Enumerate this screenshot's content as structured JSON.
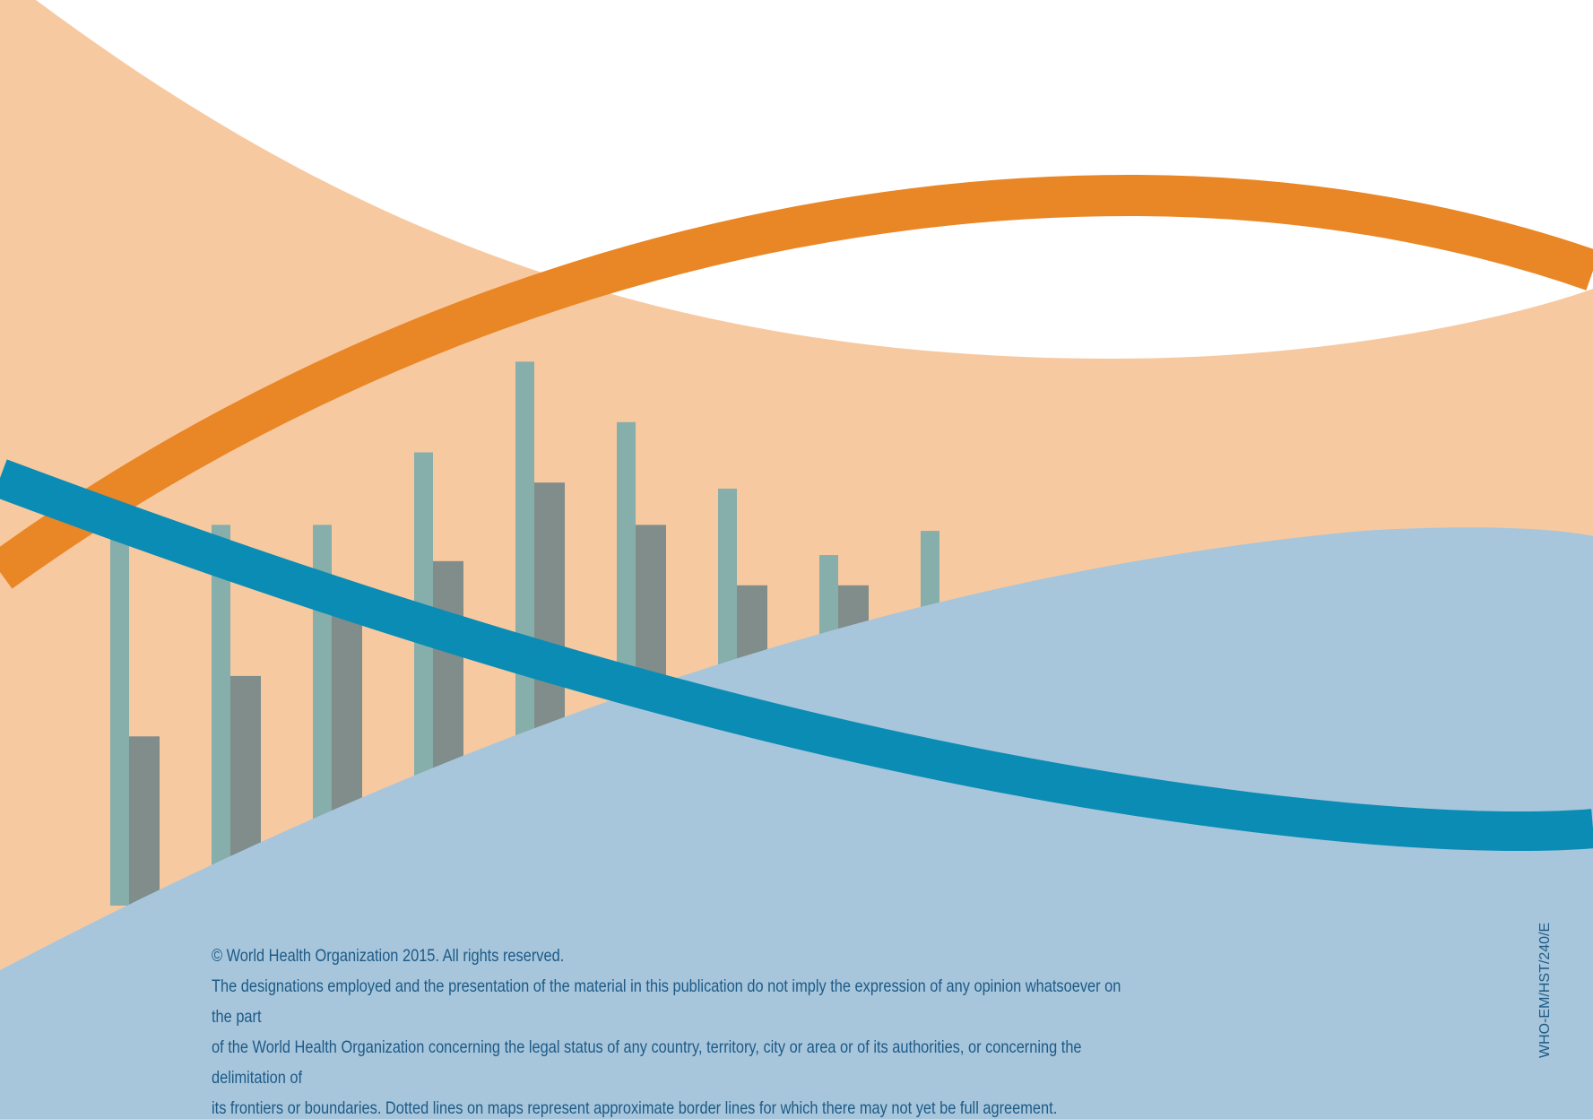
{
  "colors": {
    "background": "#ffffff",
    "peach": "#f7c9a0",
    "orange_band": "#e98626",
    "light_blue": "#a7c6dc",
    "teal_band": "#0b8cb4",
    "bar_light": "#86aeab",
    "bar_dark": "#808d8a",
    "text": "#1d5a86"
  },
  "chart_data": {
    "type": "bar",
    "categories": [
      "",
      "",
      "",
      "",
      "",
      "",
      "",
      "",
      ""
    ],
    "series": [
      {
        "values": [
          64,
          63,
          63,
          75,
          90,
          80,
          69,
          58,
          62
        ]
      },
      {
        "values": [
          28,
          38,
          52,
          57,
          70,
          63,
          53,
          53,
          0
        ]
      }
    ],
    "ylim": [
      0,
      100
    ],
    "title": "",
    "xlabel": "",
    "ylabel": ""
  },
  "footer": {
    "copyright": "© World Health Organization 2015. All rights reserved.",
    "disclaimer_line1": "The designations employed and the presentation of the material in this publication do not imply the expression of any opinion whatsoever on the part",
    "disclaimer_line2": "of the World Health Organization concerning the legal status of any country, territory, city or area or of its authorities, or concerning the delimitation of",
    "disclaimer_line3": "its frontiers or boundaries. Dotted lines on maps represent approximate border lines for which there may not yet be full agreement."
  },
  "document_code": "WHO-EM/HST/240/E"
}
